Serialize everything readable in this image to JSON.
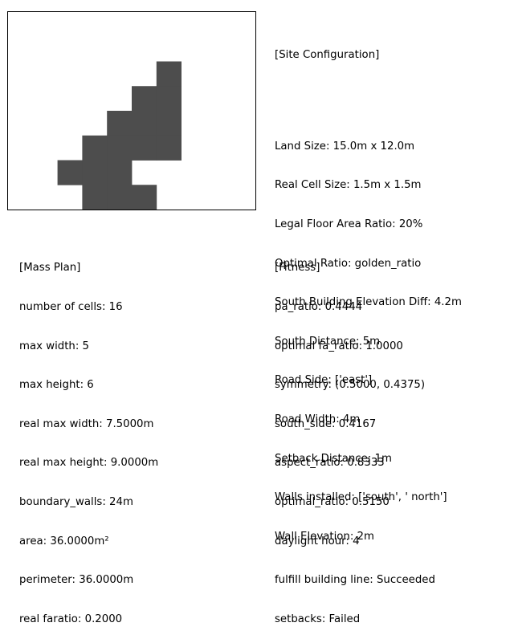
{
  "mass_grid": {
    "cols": 10,
    "rows": 8,
    "cell_color": "#4d4d4d",
    "cells": [
      [
        6,
        2
      ],
      [
        5,
        3
      ],
      [
        6,
        3
      ],
      [
        4,
        4
      ],
      [
        5,
        4
      ],
      [
        6,
        4
      ],
      [
        3,
        5
      ],
      [
        4,
        5
      ],
      [
        5,
        5
      ],
      [
        6,
        5
      ],
      [
        2,
        6
      ],
      [
        3,
        6
      ],
      [
        4,
        6
      ],
      [
        3,
        7
      ],
      [
        4,
        7
      ],
      [
        5,
        7
      ]
    ]
  },
  "site_config": {
    "header": "[Site Configuration]",
    "lines": [
      "Land Size: 15.0m x 12.0m",
      "Real Cell Size: 1.5m x 1.5m",
      "Legal Floor Area Ratio: 20%",
      "Optimal Ratio: golden_ratio",
      "South Building Elevation Diff: 4.2m",
      "South Distance: 5m",
      "Road Side: ['east']",
      "Road Width: 4m",
      "Setback Distance: 1m",
      "Walls installed: ['south', ' north']",
      "Wall Elevation: 2m"
    ]
  },
  "mass_plan": {
    "header": "[Mass Plan]",
    "lines": [
      "number of cells: 16",
      "max width: 5",
      "max height: 6",
      "real max width: 7.5000m",
      "real max height: 9.0000m",
      "boundary_walls: 24m",
      "area: 36.0000m²",
      "perimeter: 36.0000m",
      "real faratio: 0.2000"
    ]
  },
  "fitness": {
    "header": "[Fitness]",
    "lines": [
      "pa_ratio: 0.4444",
      "optimal fa_ratio: 1.0000",
      "symmetry: (0.5000, 0.4375)",
      "south_side: 0.4167",
      "aspect_ratio: 0.8333",
      "optimal_ratio: 0.5150",
      "daylight hour: 4",
      "fulfill building line: Succeeded",
      "setbacks: Failed"
    ]
  }
}
